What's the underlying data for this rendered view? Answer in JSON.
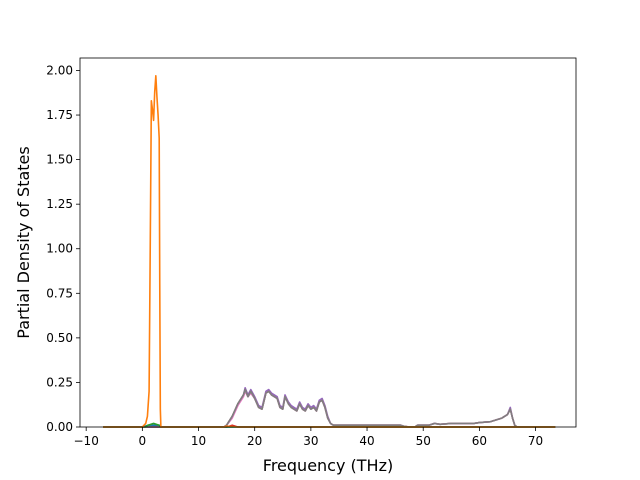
{
  "chart_data": {
    "type": "line",
    "title": "",
    "xlabel": "Frequency (THz)",
    "ylabel": "Partial Density of States",
    "xlim": [
      -11.1,
      77.2
    ],
    "ylim": [
      0.0,
      2.07
    ],
    "xticks": [
      -10,
      0,
      10,
      20,
      30,
      40,
      50,
      60,
      70
    ],
    "xtick_labels": [
      "−10",
      "0",
      "10",
      "20",
      "30",
      "40",
      "50",
      "60",
      "70"
    ],
    "yticks": [
      0.0,
      0.25,
      0.5,
      0.75,
      1.0,
      1.25,
      1.5,
      1.75,
      2.0
    ],
    "ytick_labels": [
      "0.00",
      "0.25",
      "0.50",
      "0.75",
      "1.00",
      "1.25",
      "1.50",
      "1.75",
      "2.00"
    ],
    "grid": false,
    "legend": "none",
    "series": [
      {
        "color": "#1f77b4",
        "points": [
          [
            -7.0,
            0.0
          ],
          [
            0.0,
            0.0
          ],
          [
            1.0,
            0.01
          ],
          [
            3.0,
            0.01
          ],
          [
            3.3,
            0.0
          ],
          [
            73.5,
            0.0
          ]
        ]
      },
      {
        "color": "#d62728",
        "points": [
          [
            -7.0,
            0.0
          ],
          [
            15.0,
            0.0
          ],
          [
            16.0,
            0.01
          ],
          [
            17.0,
            0.0
          ],
          [
            73.5,
            0.0
          ]
        ]
      },
      {
        "color": "#9467bd",
        "points": [
          [
            -7.0,
            0.0
          ],
          [
            14.5,
            0.0
          ],
          [
            15.0,
            0.01
          ],
          [
            16.0,
            0.06
          ],
          [
            17.0,
            0.13
          ],
          [
            18.0,
            0.18
          ],
          [
            18.3,
            0.22
          ],
          [
            18.8,
            0.18
          ],
          [
            19.3,
            0.21
          ],
          [
            20.0,
            0.17
          ],
          [
            20.7,
            0.12
          ],
          [
            21.3,
            0.11
          ],
          [
            22.0,
            0.2
          ],
          [
            22.5,
            0.21
          ],
          [
            23.0,
            0.19
          ],
          [
            24.0,
            0.17
          ],
          [
            24.5,
            0.12
          ],
          [
            25.0,
            0.11
          ],
          [
            25.4,
            0.18
          ],
          [
            26.0,
            0.14
          ],
          [
            26.5,
            0.12
          ],
          [
            27.0,
            0.11
          ],
          [
            27.5,
            0.1
          ],
          [
            28.0,
            0.14
          ],
          [
            28.5,
            0.11
          ],
          [
            29.0,
            0.1
          ],
          [
            29.5,
            0.13
          ],
          [
            30.0,
            0.11
          ],
          [
            30.5,
            0.12
          ],
          [
            31.0,
            0.1
          ],
          [
            31.5,
            0.15
          ],
          [
            32.0,
            0.16
          ],
          [
            32.5,
            0.12
          ],
          [
            33.0,
            0.06
          ],
          [
            33.5,
            0.02
          ],
          [
            34.0,
            0.01
          ],
          [
            40.0,
            0.01
          ],
          [
            46.0,
            0.01
          ],
          [
            46.5,
            0.005
          ],
          [
            47.5,
            0.0
          ],
          [
            48.5,
            0.0
          ],
          [
            49.0,
            0.01
          ],
          [
            51.0,
            0.01
          ],
          [
            52.0,
            0.02
          ],
          [
            53.0,
            0.015
          ],
          [
            55.0,
            0.02
          ],
          [
            57.0,
            0.02
          ],
          [
            59.0,
            0.02
          ],
          [
            60.0,
            0.025
          ],
          [
            62.0,
            0.03
          ],
          [
            63.0,
            0.04
          ],
          [
            64.0,
            0.05
          ],
          [
            65.0,
            0.07
          ],
          [
            65.5,
            0.11
          ],
          [
            65.9,
            0.05
          ],
          [
            66.3,
            0.01
          ],
          [
            66.7,
            0.0
          ],
          [
            73.5,
            0.0
          ]
        ]
      },
      {
        "color": "#8c564b",
        "points": [
          [
            -7.0,
            0.0
          ],
          [
            14.5,
            0.0
          ],
          [
            15.0,
            0.01
          ],
          [
            16.0,
            0.06
          ],
          [
            17.0,
            0.13
          ],
          [
            18.0,
            0.18
          ],
          [
            18.3,
            0.21
          ],
          [
            18.8,
            0.17
          ],
          [
            19.3,
            0.2
          ],
          [
            20.0,
            0.16
          ],
          [
            20.7,
            0.11
          ],
          [
            21.3,
            0.1
          ],
          [
            22.0,
            0.19
          ],
          [
            22.5,
            0.2
          ],
          [
            23.0,
            0.18
          ],
          [
            24.0,
            0.16
          ],
          [
            24.5,
            0.11
          ],
          [
            25.0,
            0.1
          ],
          [
            25.4,
            0.17
          ],
          [
            26.0,
            0.13
          ],
          [
            26.5,
            0.11
          ],
          [
            27.0,
            0.1
          ],
          [
            27.5,
            0.09
          ],
          [
            28.0,
            0.13
          ],
          [
            28.5,
            0.1
          ],
          [
            29.0,
            0.09
          ],
          [
            29.5,
            0.12
          ],
          [
            30.0,
            0.1
          ],
          [
            30.5,
            0.11
          ],
          [
            31.0,
            0.09
          ],
          [
            31.5,
            0.14
          ],
          [
            32.0,
            0.15
          ],
          [
            32.5,
            0.11
          ],
          [
            33.0,
            0.05
          ],
          [
            33.5,
            0.02
          ],
          [
            34.0,
            0.01
          ],
          [
            40.0,
            0.01
          ],
          [
            46.0,
            0.01
          ],
          [
            46.5,
            0.005
          ],
          [
            47.5,
            0.0
          ],
          [
            48.5,
            0.0
          ],
          [
            49.0,
            0.01
          ],
          [
            51.0,
            0.01
          ],
          [
            52.0,
            0.02
          ],
          [
            53.0,
            0.015
          ],
          [
            55.0,
            0.02
          ],
          [
            57.0,
            0.02
          ],
          [
            59.0,
            0.02
          ],
          [
            60.0,
            0.025
          ],
          [
            62.0,
            0.03
          ],
          [
            63.0,
            0.04
          ],
          [
            64.0,
            0.05
          ],
          [
            65.0,
            0.07
          ],
          [
            65.5,
            0.1
          ],
          [
            65.9,
            0.05
          ],
          [
            66.3,
            0.01
          ],
          [
            66.7,
            0.0
          ],
          [
            73.5,
            0.0
          ]
        ]
      },
      {
        "color": "#e377c2",
        "points": [
          [
            -7.0,
            0.0
          ],
          [
            14.5,
            0.0
          ],
          [
            15.0,
            0.01
          ],
          [
            16.0,
            0.05
          ],
          [
            17.0,
            0.12
          ],
          [
            18.0,
            0.17
          ],
          [
            18.3,
            0.2
          ],
          [
            18.8,
            0.17
          ],
          [
            19.3,
            0.19
          ],
          [
            20.0,
            0.16
          ],
          [
            20.7,
            0.11
          ],
          [
            21.3,
            0.1
          ],
          [
            22.0,
            0.19
          ],
          [
            22.5,
            0.2
          ],
          [
            23.0,
            0.18
          ],
          [
            24.0,
            0.16
          ],
          [
            24.5,
            0.11
          ],
          [
            25.0,
            0.1
          ],
          [
            25.4,
            0.17
          ],
          [
            26.0,
            0.13
          ],
          [
            26.5,
            0.11
          ],
          [
            27.0,
            0.1
          ],
          [
            27.5,
            0.09
          ],
          [
            28.0,
            0.13
          ],
          [
            28.5,
            0.1
          ],
          [
            29.0,
            0.09
          ],
          [
            29.5,
            0.12
          ],
          [
            30.0,
            0.1
          ],
          [
            30.5,
            0.11
          ],
          [
            31.0,
            0.09
          ],
          [
            31.5,
            0.14
          ],
          [
            32.0,
            0.15
          ],
          [
            32.5,
            0.11
          ],
          [
            33.0,
            0.05
          ],
          [
            33.5,
            0.02
          ],
          [
            34.0,
            0.01
          ],
          [
            40.0,
            0.01
          ],
          [
            46.0,
            0.01
          ],
          [
            46.5,
            0.005
          ],
          [
            47.5,
            0.0
          ],
          [
            48.5,
            0.0
          ],
          [
            49.0,
            0.01
          ],
          [
            51.0,
            0.01
          ],
          [
            52.0,
            0.02
          ],
          [
            53.0,
            0.015
          ],
          [
            55.0,
            0.02
          ],
          [
            57.0,
            0.02
          ],
          [
            59.0,
            0.02
          ],
          [
            60.0,
            0.025
          ],
          [
            62.0,
            0.03
          ],
          [
            63.0,
            0.04
          ],
          [
            64.0,
            0.05
          ],
          [
            65.0,
            0.07
          ],
          [
            65.5,
            0.1
          ],
          [
            65.9,
            0.05
          ],
          [
            66.3,
            0.01
          ],
          [
            66.7,
            0.0
          ],
          [
            73.5,
            0.0
          ]
        ]
      },
      {
        "color": "#7f7f7f",
        "points": [
          [
            -7.0,
            0.0
          ],
          [
            14.5,
            0.0
          ],
          [
            15.0,
            0.01
          ],
          [
            16.0,
            0.06
          ],
          [
            17.0,
            0.13
          ],
          [
            18.0,
            0.18
          ],
          [
            18.3,
            0.21
          ],
          [
            18.8,
            0.17
          ],
          [
            19.3,
            0.2
          ],
          [
            20.0,
            0.16
          ],
          [
            20.7,
            0.11
          ],
          [
            21.3,
            0.1
          ],
          [
            22.0,
            0.19
          ],
          [
            22.5,
            0.2
          ],
          [
            23.0,
            0.18
          ],
          [
            24.0,
            0.16
          ],
          [
            24.5,
            0.11
          ],
          [
            25.0,
            0.1
          ],
          [
            25.4,
            0.17
          ],
          [
            26.0,
            0.13
          ],
          [
            26.5,
            0.11
          ],
          [
            27.0,
            0.1
          ],
          [
            27.5,
            0.09
          ],
          [
            28.0,
            0.13
          ],
          [
            28.5,
            0.1
          ],
          [
            29.0,
            0.09
          ],
          [
            29.5,
            0.12
          ],
          [
            30.0,
            0.1
          ],
          [
            30.5,
            0.11
          ],
          [
            31.0,
            0.09
          ],
          [
            31.5,
            0.14
          ],
          [
            32.0,
            0.15
          ],
          [
            32.5,
            0.11
          ],
          [
            33.0,
            0.05
          ],
          [
            33.5,
            0.02
          ],
          [
            34.0,
            0.01
          ],
          [
            40.0,
            0.01
          ],
          [
            46.0,
            0.01
          ],
          [
            46.5,
            0.005
          ],
          [
            47.5,
            0.0
          ],
          [
            48.5,
            0.0
          ],
          [
            49.0,
            0.01
          ],
          [
            51.0,
            0.01
          ],
          [
            52.0,
            0.02
          ],
          [
            53.0,
            0.015
          ],
          [
            55.0,
            0.02
          ],
          [
            57.0,
            0.02
          ],
          [
            59.0,
            0.02
          ],
          [
            60.0,
            0.025
          ],
          [
            62.0,
            0.03
          ],
          [
            63.0,
            0.04
          ],
          [
            64.0,
            0.05
          ],
          [
            65.0,
            0.07
          ],
          [
            65.5,
            0.1
          ],
          [
            65.9,
            0.05
          ],
          [
            66.3,
            0.01
          ],
          [
            66.7,
            0.0
          ],
          [
            73.5,
            0.0
          ]
        ]
      },
      {
        "color": "#2ca02c",
        "points": [
          [
            -7.0,
            0.0
          ],
          [
            0.5,
            0.0
          ],
          [
            1.0,
            0.01
          ],
          [
            2.0,
            0.02
          ],
          [
            3.0,
            0.01
          ],
          [
            3.3,
            0.0
          ],
          [
            73.5,
            0.0
          ]
        ]
      },
      {
        "color": "#ff7f0e",
        "points": [
          [
            -7.0,
            0.0
          ],
          [
            0.0,
            0.0
          ],
          [
            0.3,
            0.01
          ],
          [
            0.6,
            0.02
          ],
          [
            0.9,
            0.06
          ],
          [
            1.2,
            0.2
          ],
          [
            1.4,
            1.0
          ],
          [
            1.6,
            1.83
          ],
          [
            1.8,
            1.78
          ],
          [
            2.0,
            1.72
          ],
          [
            2.2,
            1.88
          ],
          [
            2.4,
            1.97
          ],
          [
            2.6,
            1.85
          ],
          [
            2.8,
            1.75
          ],
          [
            3.0,
            1.62
          ],
          [
            3.1,
            0.8
          ],
          [
            3.2,
            0.1
          ],
          [
            3.3,
            0.0
          ],
          [
            14.5,
            0.0
          ],
          [
            15.0,
            0.005
          ],
          [
            17.0,
            0.0
          ],
          [
            73.5,
            0.0
          ]
        ]
      }
    ]
  }
}
